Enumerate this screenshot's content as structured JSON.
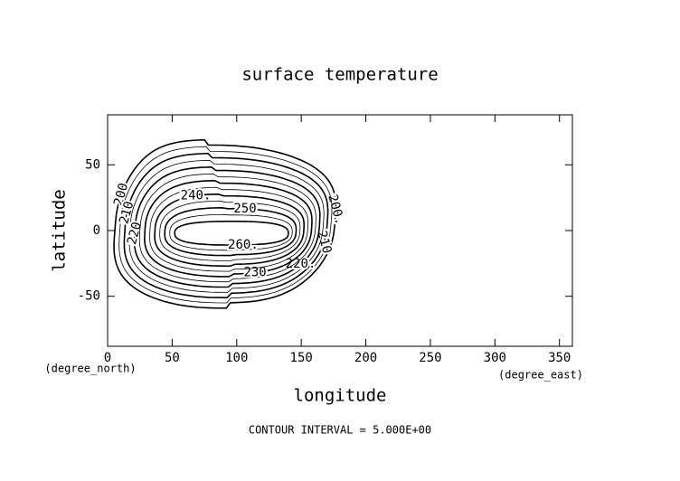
{
  "chart_data": {
    "type": "contour",
    "title": "surface temperature",
    "xlabel": "longitude",
    "ylabel": "latitude",
    "xunit": "(degree_east)",
    "yunit": "(degree_north)",
    "footer": "CONTOUR INTERVAL = 5.000E+00",
    "xlim": [
      0,
      360
    ],
    "ylim": [
      -88,
      88
    ],
    "xticks": [
      0,
      50,
      100,
      150,
      200,
      250,
      300,
      350
    ],
    "yticks": [
      -50,
      0,
      50
    ],
    "contours": [
      {
        "level": 200,
        "labels": [
          "200.",
          "200"
        ]
      },
      {
        "level": 205,
        "labels": []
      },
      {
        "level": 210,
        "labels": [
          "210",
          "210"
        ]
      },
      {
        "level": 215,
        "labels": []
      },
      {
        "level": 220,
        "labels": [
          "220.",
          "220"
        ]
      },
      {
        "level": 225,
        "labels": []
      },
      {
        "level": 230,
        "labels": [
          "230"
        ]
      },
      {
        "level": 235,
        "labels": []
      },
      {
        "level": 240,
        "labels": [
          "240."
        ]
      },
      {
        "level": 245,
        "labels": []
      },
      {
        "level": 250,
        "labels": [
          "250"
        ]
      },
      {
        "level": 255,
        "labels": []
      },
      {
        "level": 260,
        "labels": [
          "260."
        ]
      }
    ]
  }
}
